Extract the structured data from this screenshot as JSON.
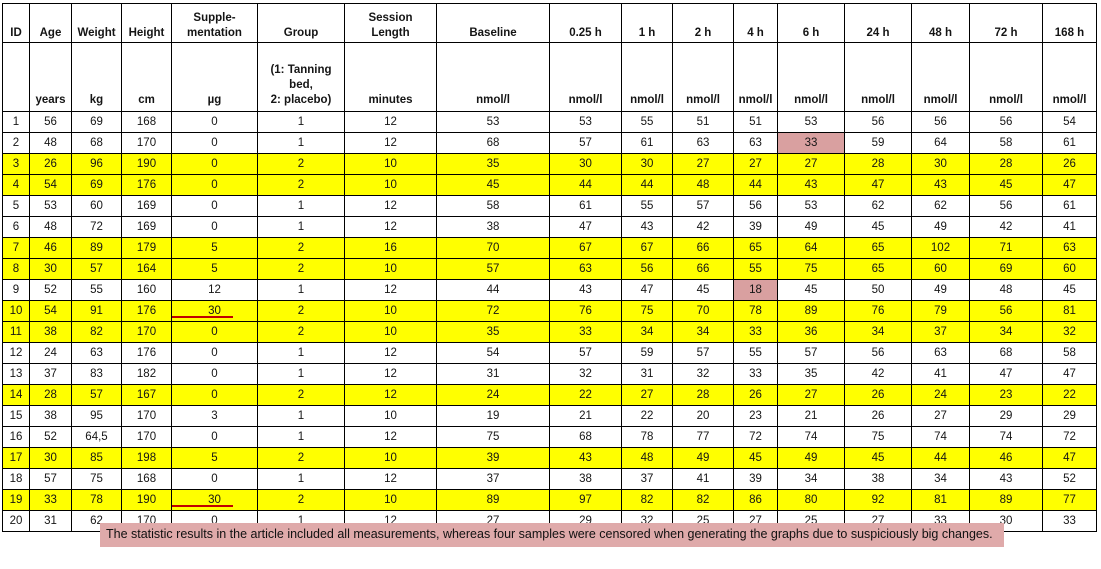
{
  "colors": {
    "row_highlight_yellow": "#ffff00",
    "censored_pink": "#d9a0a0",
    "censored_blend_left": "#dcaaa7",
    "censored_blend_right": "#cf9b13",
    "red_mark_line": "#c00000",
    "note_background": "#dfaaaa",
    "grid_border": "#000000"
  },
  "table": {
    "columns": [
      {
        "key": "id",
        "label": "ID",
        "unit": ""
      },
      {
        "key": "age",
        "label": "Age",
        "unit": "years"
      },
      {
        "key": "weight",
        "label": "Weight",
        "unit": "kg"
      },
      {
        "key": "height",
        "label": "Height",
        "unit": "cm"
      },
      {
        "key": "suppl",
        "label": "Supple-\nmentation",
        "unit": "µg"
      },
      {
        "key": "group",
        "label": "Group",
        "unit": "(1: Tanning\nbed,\n2: placebo)"
      },
      {
        "key": "session",
        "label": "Session\nLength",
        "unit": "minutes"
      },
      {
        "key": "baseline",
        "label": "Baseline",
        "unit": "nmol/l"
      },
      {
        "key": "h025",
        "label": "0.25 h",
        "unit": "nmol/l"
      },
      {
        "key": "h1",
        "label": "1 h",
        "unit": "nmol/l"
      },
      {
        "key": "h2",
        "label": "2 h",
        "unit": "nmol/l"
      },
      {
        "key": "h4",
        "label": "4 h",
        "unit": "nmol/l"
      },
      {
        "key": "h6",
        "label": "6 h",
        "unit": "nmol/l"
      },
      {
        "key": "h24",
        "label": "24 h",
        "unit": "nmol/l"
      },
      {
        "key": "h48",
        "label": "48 h",
        "unit": "nmol/l"
      },
      {
        "key": "h72",
        "label": "72 h",
        "unit": "nmol/l"
      },
      {
        "key": "h168",
        "label": "168 h",
        "unit": "nmol/l"
      }
    ],
    "rows": [
      {
        "highlight": false,
        "values": [
          "1",
          "56",
          "69",
          "168",
          "0",
          "1",
          "12",
          "53",
          "53",
          "55",
          "51",
          "51",
          "53",
          "56",
          "56",
          "56",
          "54"
        ],
        "marks": {}
      },
      {
        "highlight": false,
        "values": [
          "2",
          "48",
          "68",
          "170",
          "0",
          "1",
          "12",
          "68",
          "57",
          "61",
          "63",
          "63",
          "33",
          "59",
          "64",
          "58",
          "61"
        ],
        "marks": {
          "12": "pink"
        }
      },
      {
        "highlight": true,
        "values": [
          "3",
          "26",
          "96",
          "190",
          "0",
          "2",
          "10",
          "35",
          "30",
          "30",
          "27",
          "27",
          "27",
          "28",
          "30",
          "28",
          "26"
        ],
        "marks": {}
      },
      {
        "highlight": true,
        "values": [
          "4",
          "54",
          "69",
          "176",
          "0",
          "2",
          "10",
          "45",
          "44",
          "44",
          "48",
          "44",
          "43",
          "47",
          "43",
          "45",
          "47"
        ],
        "marks": {}
      },
      {
        "highlight": false,
        "values": [
          "5",
          "53",
          "60",
          "169",
          "0",
          "1",
          "12",
          "58",
          "61",
          "55",
          "57",
          "56",
          "53",
          "62",
          "62",
          "56",
          "61"
        ],
        "marks": {}
      },
      {
        "highlight": false,
        "values": [
          "6",
          "48",
          "72",
          "169",
          "0",
          "1",
          "12",
          "38",
          "47",
          "43",
          "42",
          "39",
          "49",
          "45",
          "49",
          "42",
          "41"
        ],
        "marks": {}
      },
      {
        "highlight": true,
        "values": [
          "7",
          "46",
          "89",
          "179",
          "5",
          "2",
          "16",
          "70",
          "67",
          "67",
          "66",
          "65",
          "64",
          "65",
          "102",
          "71",
          "63"
        ],
        "marks": {
          "14": "blend"
        }
      },
      {
        "highlight": true,
        "values": [
          "8",
          "30",
          "57",
          "164",
          "5",
          "2",
          "10",
          "57",
          "63",
          "56",
          "66",
          "55",
          "75",
          "65",
          "60",
          "69",
          "60"
        ],
        "marks": {}
      },
      {
        "highlight": false,
        "values": [
          "9",
          "52",
          "55",
          "160",
          "12",
          "1",
          "12",
          "44",
          "43",
          "47",
          "45",
          "18",
          "45",
          "50",
          "49",
          "48",
          "45"
        ],
        "marks": {
          "11": "pink"
        }
      },
      {
        "highlight": true,
        "values": [
          "10",
          "54",
          "91",
          "176",
          "30",
          "2",
          "10",
          "72",
          "76",
          "75",
          "70",
          "78",
          "89",
          "76",
          "79",
          "56",
          "81"
        ],
        "marks": {
          "4": "redline",
          "15": "blend"
        }
      },
      {
        "highlight": true,
        "values": [
          "11",
          "38",
          "82",
          "170",
          "0",
          "2",
          "10",
          "35",
          "33",
          "34",
          "34",
          "33",
          "36",
          "34",
          "37",
          "34",
          "32"
        ],
        "marks": {}
      },
      {
        "highlight": false,
        "values": [
          "12",
          "24",
          "63",
          "176",
          "0",
          "1",
          "12",
          "54",
          "57",
          "59",
          "57",
          "55",
          "57",
          "56",
          "63",
          "68",
          "58"
        ],
        "marks": {}
      },
      {
        "highlight": false,
        "values": [
          "13",
          "37",
          "83",
          "182",
          "0",
          "1",
          "12",
          "31",
          "32",
          "31",
          "32",
          "33",
          "35",
          "42",
          "41",
          "47",
          "47"
        ],
        "marks": {}
      },
      {
        "highlight": true,
        "values": [
          "14",
          "28",
          "57",
          "167",
          "0",
          "2",
          "12",
          "24",
          "22",
          "27",
          "28",
          "26",
          "27",
          "26",
          "24",
          "23",
          "22"
        ],
        "marks": {}
      },
      {
        "highlight": false,
        "values": [
          "15",
          "38",
          "95",
          "170",
          "3",
          "1",
          "10",
          "19",
          "21",
          "22",
          "20",
          "23",
          "21",
          "26",
          "27",
          "29",
          "29"
        ],
        "marks": {}
      },
      {
        "highlight": false,
        "values": [
          "16",
          "52",
          "64,5",
          "170",
          "0",
          "1",
          "12",
          "75",
          "68",
          "78",
          "77",
          "72",
          "74",
          "75",
          "74",
          "74",
          "72"
        ],
        "marks": {}
      },
      {
        "highlight": true,
        "values": [
          "17",
          "30",
          "85",
          "198",
          "5",
          "2",
          "10",
          "39",
          "43",
          "48",
          "49",
          "45",
          "49",
          "45",
          "44",
          "46",
          "47"
        ],
        "marks": {}
      },
      {
        "highlight": false,
        "values": [
          "18",
          "57",
          "75",
          "168",
          "0",
          "1",
          "12",
          "37",
          "38",
          "37",
          "41",
          "39",
          "34",
          "38",
          "34",
          "43",
          "52"
        ],
        "marks": {}
      },
      {
        "highlight": true,
        "values": [
          "19",
          "33",
          "78",
          "190",
          "30",
          "2",
          "10",
          "89",
          "97",
          "82",
          "82",
          "86",
          "80",
          "92",
          "81",
          "89",
          "77"
        ],
        "marks": {
          "4": "redline"
        }
      },
      {
        "highlight": false,
        "values": [
          "20",
          "31",
          "62",
          "170",
          "0",
          "1",
          "12",
          "27",
          "29",
          "32",
          "25",
          "27",
          "25",
          "27",
          "33",
          "30",
          "33"
        ],
        "marks": {}
      }
    ]
  },
  "note": {
    "text": "The statistic results in the article included all measurements, whereas four samples were censored when generating the graphs due to suspiciously big changes."
  }
}
